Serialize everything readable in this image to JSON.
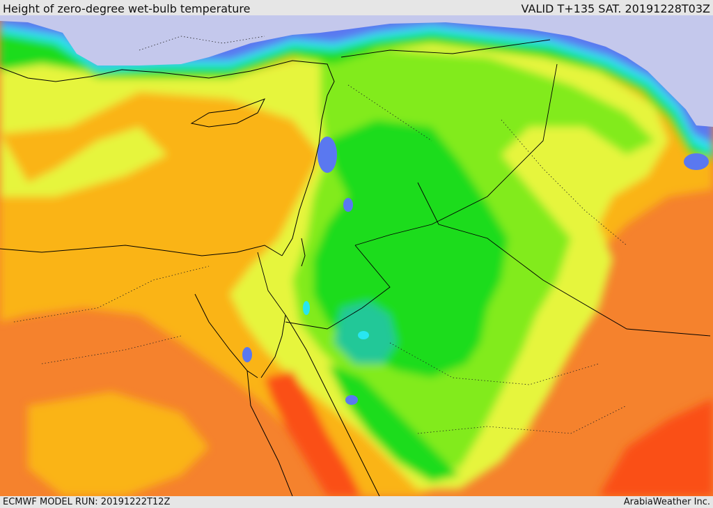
{
  "header": {
    "title": "Height of zero-degree wet-bulb temperature",
    "valid": "VALID T+135 SAT. 20191228T03Z"
  },
  "footer": {
    "model_run": "ECMWF MODEL RUN: 20191222T12Z",
    "credit": "ArabiaWeather Inc."
  },
  "colors": {
    "sea_gray": "#c4c8ec",
    "blue": "#5a78f0",
    "cyan": "#28e6f0",
    "teal": "#22c898",
    "green": "#1fdc1f",
    "light_green": "#82eb1e",
    "yellow": "#e6f53c",
    "amber": "#fab414",
    "orange": "#fa9628",
    "dark_orange": "#f5822d",
    "red_orange": "#fa5014",
    "border": "#000000"
  }
}
